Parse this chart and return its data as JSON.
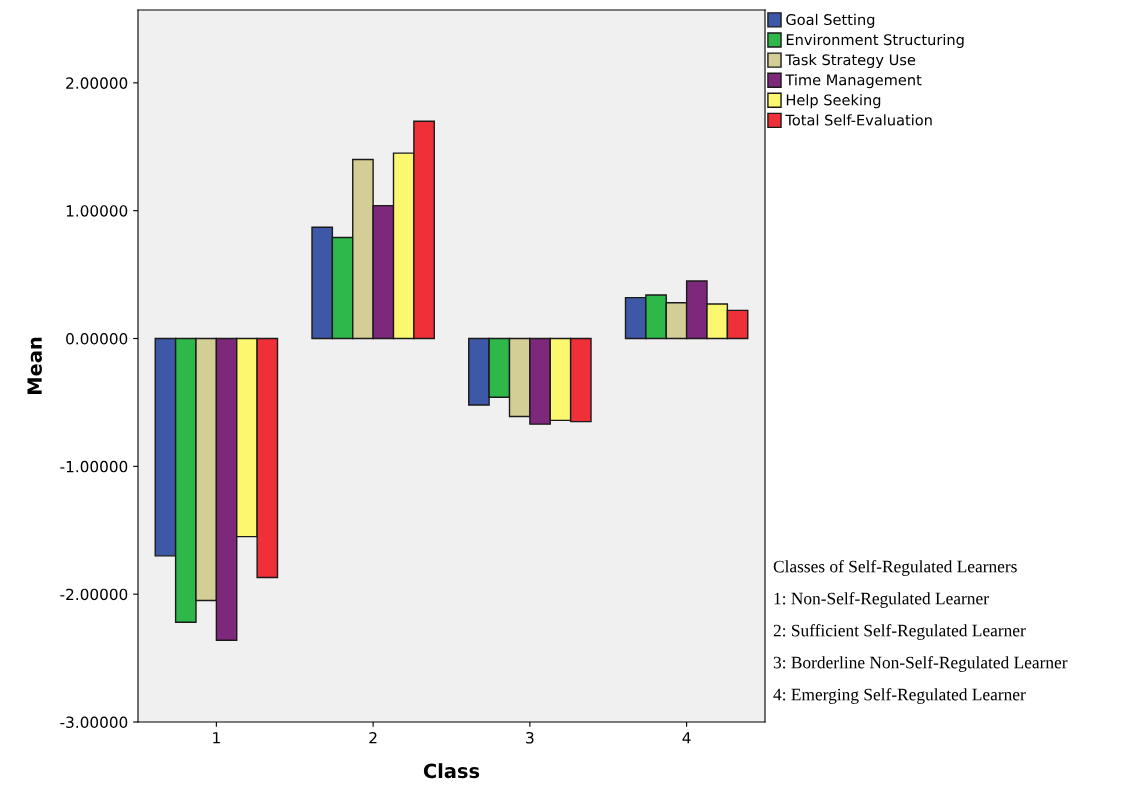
{
  "chart_data": {
    "type": "bar",
    "xlabel": "Class",
    "ylabel": "Mean",
    "categories": [
      "1",
      "2",
      "3",
      "4"
    ],
    "series": [
      {
        "name": "Goal Setting",
        "color": "#3e58a8",
        "values": [
          -1.7,
          0.87,
          -0.52,
          0.32
        ]
      },
      {
        "name": "Environment Structuring",
        "color": "#2fb84a",
        "values": [
          -2.22,
          0.79,
          -0.46,
          0.34
        ]
      },
      {
        "name": "Task Strategy Use",
        "color": "#d3cd96",
        "values": [
          -2.05,
          1.4,
          -0.61,
          0.28
        ]
      },
      {
        "name": "Time Management",
        "color": "#7d287b",
        "values": [
          -2.36,
          1.04,
          -0.67,
          0.45
        ]
      },
      {
        "name": "Help Seeking",
        "color": "#fbf870",
        "values": [
          -1.55,
          1.45,
          -0.64,
          0.27
        ]
      },
      {
        "name": "Total Self-Evaluation",
        "color": "#ef3038",
        "values": [
          -1.87,
          1.7,
          -0.65,
          0.22
        ]
      }
    ],
    "ylim": [
      -3,
      2.57
    ],
    "yticks": [
      {
        "value": -3,
        "label": "-3.00000"
      },
      {
        "value": -2,
        "label": "-2.00000"
      },
      {
        "value": -1,
        "label": "-1.00000"
      },
      {
        "value": 0,
        "label": "0.00000"
      },
      {
        "value": 1,
        "label": "1.00000"
      },
      {
        "value": 2,
        "label": "2.00000"
      }
    ],
    "grid": false,
    "legend": "top right",
    "annotations": [
      "Classes of Self-Regulated Learners",
      "1: Non-Self-Regulated Learner",
      "2: Sufficient Self-Regulated Learner",
      "3: Borderline Non-Self-Regulated Learner",
      "4: Emerging Self-Regulated Learner"
    ]
  }
}
